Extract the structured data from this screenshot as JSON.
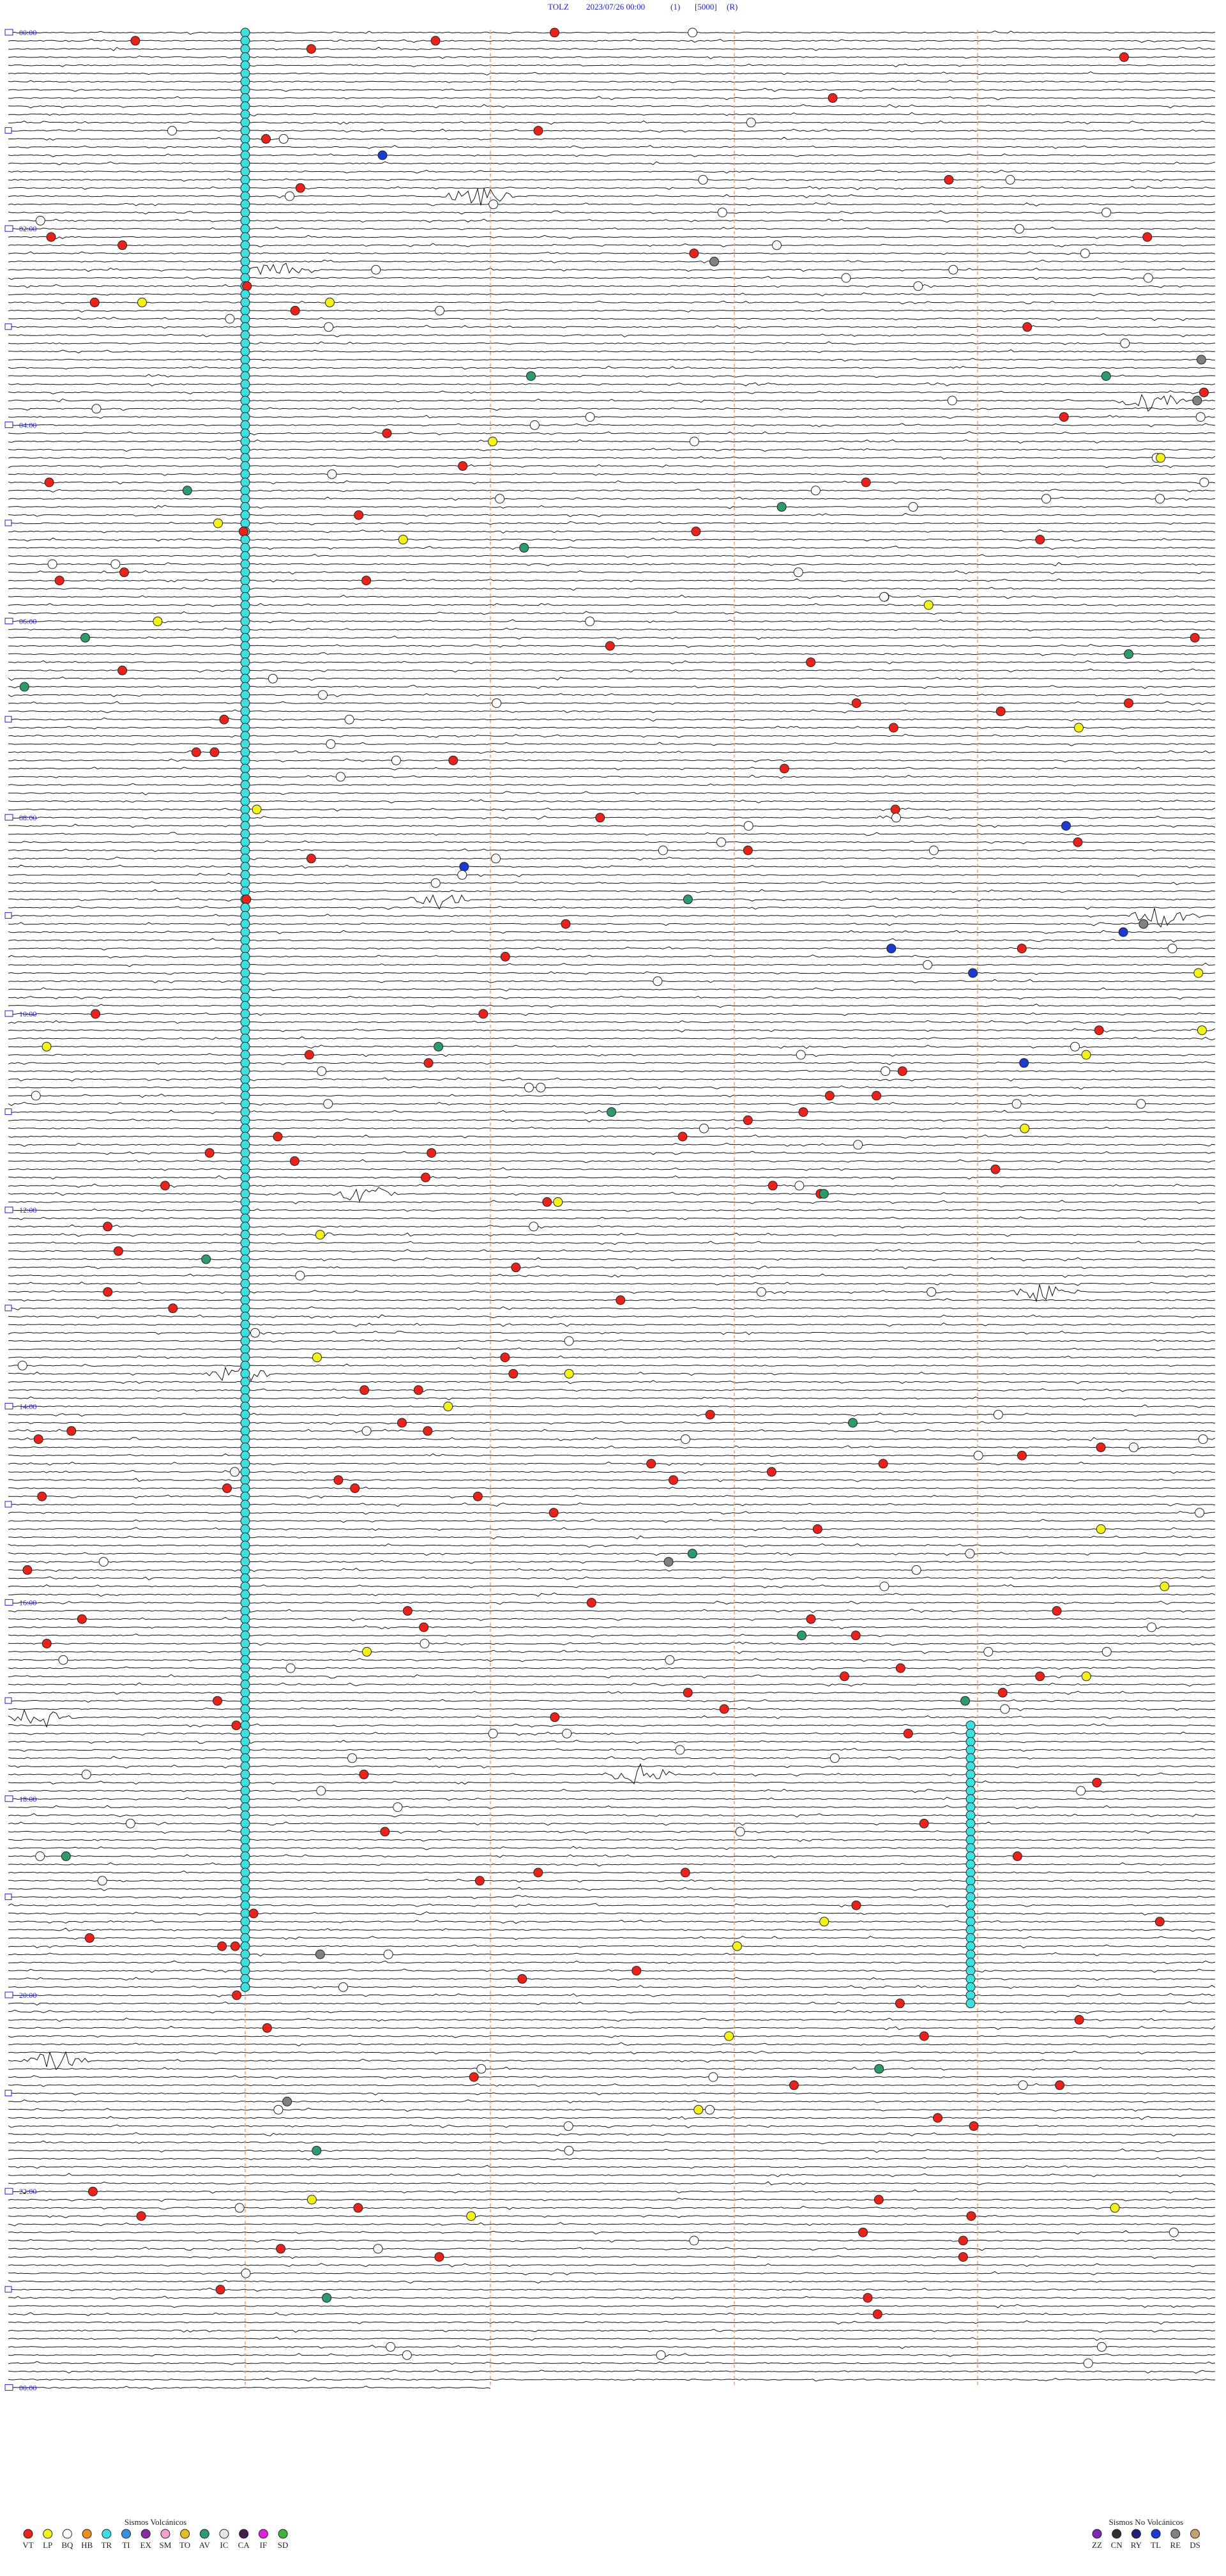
{
  "header": {
    "station": "TOLZ",
    "datetime": "2023/07/26 00:00",
    "channel": "(1)",
    "scale": "[5000]",
    "mode": "(R)"
  },
  "time_labels": [
    "00:00",
    "02:00",
    "04:00",
    "06:00",
    "08:00",
    "10:00",
    "12:00",
    "14:00",
    "16:00",
    "18:00",
    "20:00",
    "22:00",
    "00:00"
  ],
  "legend": {
    "volcanic": {
      "title": "Sismos Volcánicos",
      "items": [
        {
          "code": "VT",
          "color": "#e8231b"
        },
        {
          "code": "LP",
          "color": "#f2f21a"
        },
        {
          "code": "BQ",
          "color": "#ffffff"
        },
        {
          "code": "HB",
          "color": "#f28c1a"
        },
        {
          "code": "TR",
          "color": "#3de0e0"
        },
        {
          "code": "TI",
          "color": "#3a8ee0"
        },
        {
          "code": "EX",
          "color": "#8a2aa0"
        },
        {
          "code": "SM",
          "color": "#f0a0d0"
        },
        {
          "code": "TO",
          "color": "#e0c020"
        },
        {
          "code": "AV",
          "color": "#2e9a6a"
        },
        {
          "code": "IC",
          "color": "#e8e8e8"
        },
        {
          "code": "CA",
          "color": "#402050"
        },
        {
          "code": "IF",
          "color": "#e020e0"
        },
        {
          "code": "SD",
          "color": "#40b040"
        }
      ]
    },
    "non_volcanic": {
      "title": "Sismos No Volcánicos",
      "items": [
        {
          "code": "ZZ",
          "color": "#7a2ab0"
        },
        {
          "code": "CN",
          "color": "#303030"
        },
        {
          "code": "RY",
          "color": "#20207a"
        },
        {
          "code": "TL",
          "color": "#1a3ad0"
        },
        {
          "code": "RE",
          "color": "#808080"
        },
        {
          "code": "DS",
          "color": "#c8a070"
        }
      ]
    }
  }
}
